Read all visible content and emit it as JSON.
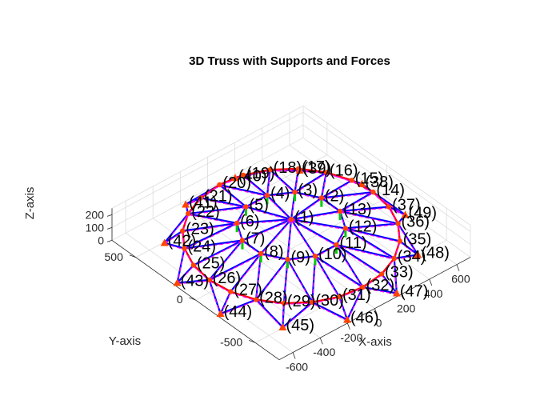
{
  "chart_data": {
    "type": "3d-truss",
    "title": "3D Truss with Supports and Forces",
    "xlabel": "X-axis",
    "ylabel": "Y-axis",
    "zlabel": "Z-axis",
    "xlim": [
      -700,
      700
    ],
    "ylim": [
      -700,
      700
    ],
    "zlim": [
      0,
      250
    ],
    "x_ticks": [
      -600,
      -400,
      -200,
      0,
      200,
      400,
      600
    ],
    "y_ticks": [
      -500,
      0,
      500
    ],
    "z_ticks": [
      0,
      100,
      200
    ],
    "grid": true,
    "colors": {
      "member": "#0000ff",
      "deformed": "#ff00ff",
      "ring": "#ff0000",
      "support": "#ff4400",
      "force": "#00cc00",
      "grid": "#dcdcdc"
    },
    "node_labels": [
      "(1)",
      "(2)",
      "(3)",
      "(4)",
      "(5)",
      "(6)",
      "(7)",
      "(8)",
      "(9)",
      "(10)",
      "(11)",
      "(12)",
      "(13)",
      "(14)",
      "(15)",
      "(16)",
      "(17)",
      "(18)",
      "(19)",
      "(20)",
      "(21)",
      "(22)",
      "(23)",
      "(24)",
      "(25)",
      "(26)",
      "(27)",
      "(28)",
      "(29)",
      "(30)",
      "(31)",
      "(32)",
      "(33)",
      "(34)",
      "(35)",
      "(36)",
      "(37)",
      "(38)",
      "(39)",
      "(40)",
      "(41)",
      "(42)",
      "(43)",
      "(44)",
      "(45)",
      "(46)",
      "(47)",
      "(48)",
      "(49)"
    ],
    "structure": {
      "apex": {
        "z": 230
      },
      "inner_ring": {
        "nodes": 12,
        "radius": 300,
        "z": 180
      },
      "middle_ring": {
        "nodes": 24,
        "radius": 600,
        "z": 100
      },
      "support_ring": {
        "nodes": 12,
        "radius": 700,
        "z": 0
      }
    }
  }
}
